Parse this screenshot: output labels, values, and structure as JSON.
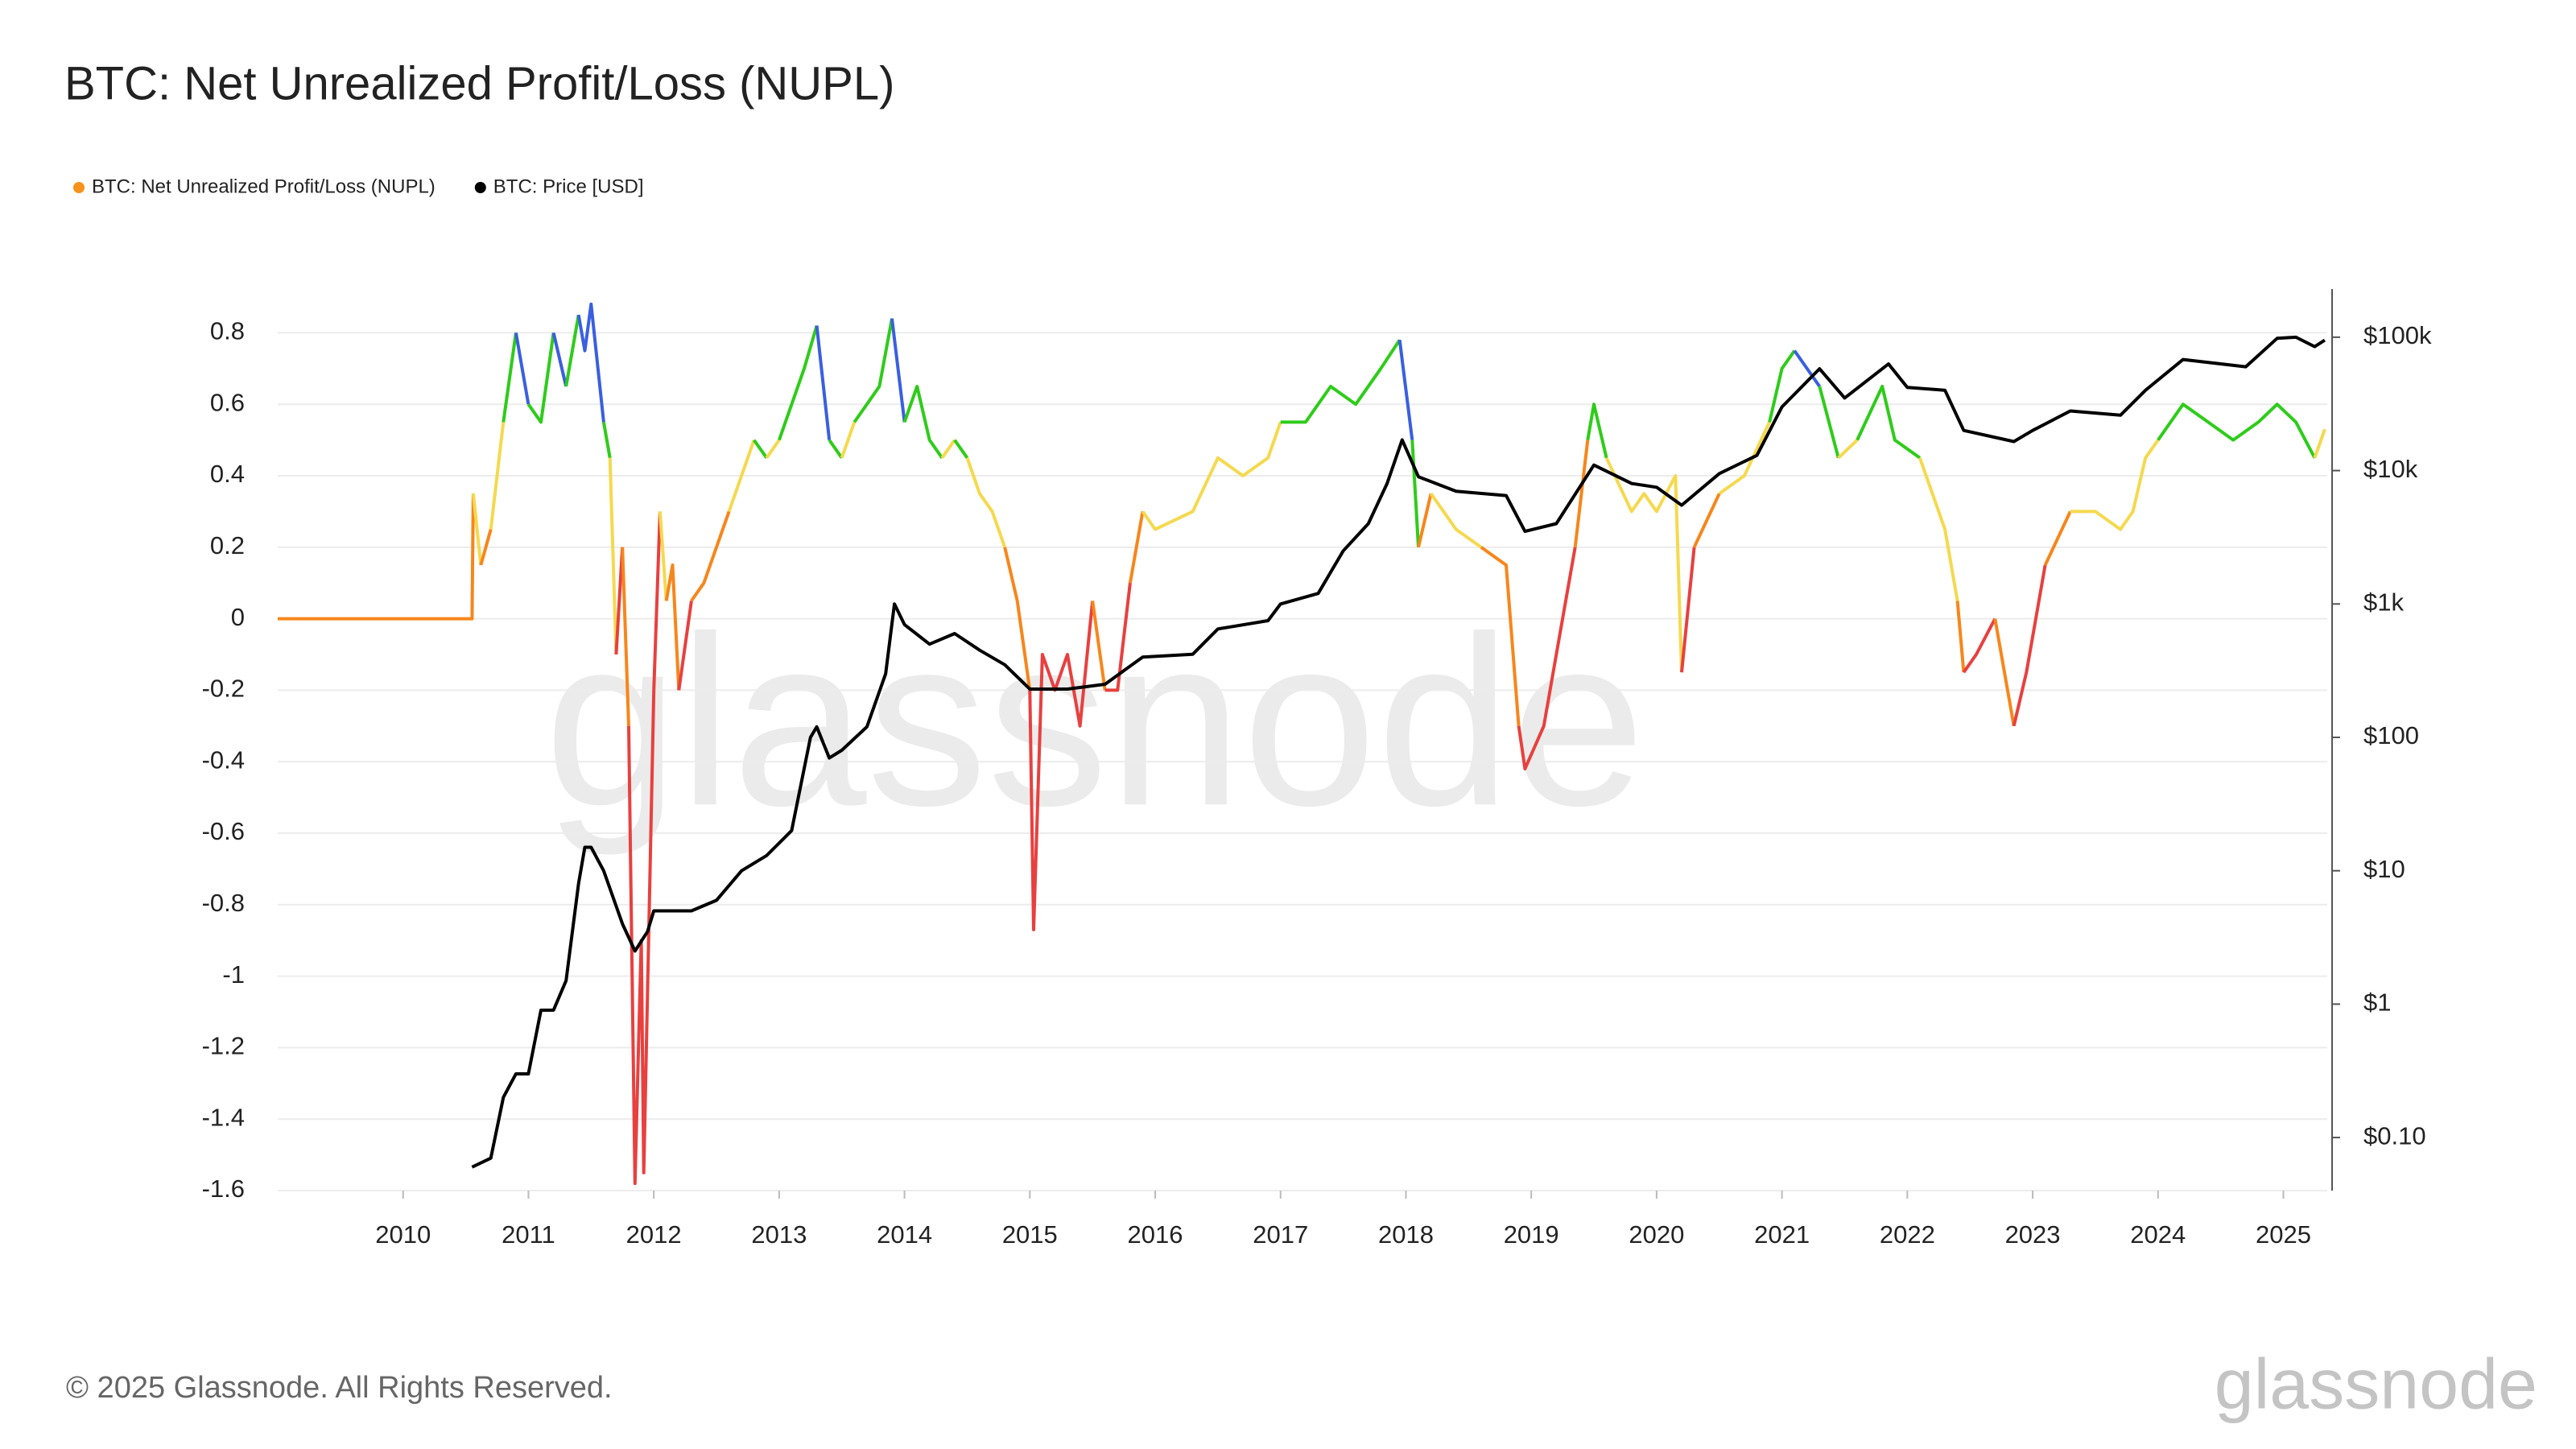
{
  "chart_data": {
    "type": "line",
    "title": "BTC: Net Unrealized Profit/Loss (NUPL)",
    "watermark": "glassnode",
    "footer": "© 2025 Glassnode. All Rights Reserved.",
    "logo": "glassnode",
    "xlim": [
      2009,
      2025.35
    ],
    "xticks": [
      2010,
      2011,
      2012,
      2013,
      2014,
      2015,
      2016,
      2017,
      2018,
      2019,
      2020,
      2021,
      2022,
      2023,
      2024,
      2025
    ],
    "ylim": [
      -1.6,
      0.9
    ],
    "yticks": [
      0.8,
      0.6,
      0.4,
      0.2,
      0,
      -0.2,
      -0.4,
      -0.6,
      -0.8,
      -1,
      -1.2,
      -1.4,
      -1.6
    ],
    "y2lim": [
      0.04,
      200000
    ],
    "y2log": true,
    "y2ticks": [
      {
        "value": 100000,
        "label": "$100k"
      },
      {
        "value": 10000,
        "label": "$10k"
      },
      {
        "value": 1000,
        "label": "$1k"
      },
      {
        "value": 100,
        "label": "$100"
      },
      {
        "value": 10,
        "label": "$10"
      },
      {
        "value": 1,
        "label": "$1"
      },
      {
        "value": 0.1,
        "label": "$0.10"
      }
    ],
    "grid": true,
    "series": [
      {
        "name": "BTC: Net Unrealized Profit/Loss (NUPL)",
        "color": "#f7931a",
        "zones": [
          {
            "max": 0,
            "color": "#e8403f"
          },
          {
            "max": 0.25,
            "color": "#f7861b"
          },
          {
            "max": 0.5,
            "color": "#f5d94e"
          },
          {
            "max": 0.75,
            "color": "#2ecc1a"
          },
          {
            "color": "#3a5fe0"
          }
        ],
        "x": [
          2009.0,
          2010.55,
          2010.56,
          2010.62,
          2010.7,
          2010.8,
          2010.9,
          2011.0,
          2011.1,
          2011.2,
          2011.3,
          2011.4,
          2011.45,
          2011.5,
          2011.6,
          2011.65,
          2011.7,
          2011.75,
          2011.8,
          2011.85,
          2011.9,
          2011.92,
          2012.0,
          2012.05,
          2012.1,
          2012.15,
          2012.2,
          2012.3,
          2012.4,
          2012.5,
          2012.6,
          2012.8,
          2012.9,
          2013.0,
          2013.2,
          2013.3,
          2013.4,
          2013.5,
          2013.6,
          2013.7,
          2013.8,
          2013.9,
          2014.0,
          2014.1,
          2014.2,
          2014.3,
          2014.4,
          2014.5,
          2014.6,
          2014.7,
          2014.8,
          2014.9,
          2015.0,
          2015.03,
          2015.1,
          2015.2,
          2015.3,
          2015.4,
          2015.5,
          2015.6,
          2015.7,
          2015.8,
          2015.9,
          2016.0,
          2016.3,
          2016.5,
          2016.7,
          2016.9,
          2017.0,
          2017.2,
          2017.4,
          2017.6,
          2017.8,
          2017.95,
          2018.05,
          2018.1,
          2018.2,
          2018.4,
          2018.6,
          2018.8,
          2018.9,
          2018.95,
          2019.1,
          2019.2,
          2019.35,
          2019.45,
          2019.5,
          2019.6,
          2019.8,
          2019.9,
          2020.0,
          2020.15,
          2020.2,
          2020.3,
          2020.5,
          2020.7,
          2020.9,
          2021.0,
          2021.1,
          2021.3,
          2021.45,
          2021.6,
          2021.8,
          2021.9,
          2022.1,
          2022.3,
          2022.4,
          2022.45,
          2022.55,
          2022.7,
          2022.85,
          2022.95,
          2023.1,
          2023.3,
          2023.5,
          2023.7,
          2023.8,
          2023.9,
          2024.0,
          2024.2,
          2024.4,
          2024.6,
          2024.8,
          2024.95,
          2025.1,
          2025.25,
          2025.33
        ],
        "values": [
          0,
          0,
          0.35,
          0.15,
          0.25,
          0.55,
          0.8,
          0.6,
          0.55,
          0.8,
          0.65,
          0.85,
          0.75,
          0.88,
          0.55,
          0.45,
          -0.1,
          0.2,
          -0.3,
          -1.58,
          -0.9,
          -1.55,
          -0.2,
          0.3,
          0.05,
          0.15,
          -0.2,
          0.05,
          0.1,
          0.2,
          0.3,
          0.5,
          0.45,
          0.5,
          0.7,
          0.82,
          0.5,
          0.45,
          0.55,
          0.6,
          0.65,
          0.84,
          0.55,
          0.65,
          0.5,
          0.45,
          0.5,
          0.45,
          0.35,
          0.3,
          0.2,
          0.05,
          -0.2,
          -0.87,
          -0.1,
          -0.2,
          -0.1,
          -0.3,
          0.05,
          -0.2,
          -0.2,
          0.1,
          0.3,
          0.25,
          0.3,
          0.45,
          0.4,
          0.45,
          0.55,
          0.55,
          0.65,
          0.6,
          0.7,
          0.78,
          0.5,
          0.2,
          0.35,
          0.25,
          0.2,
          0.15,
          -0.3,
          -0.42,
          -0.3,
          -0.1,
          0.2,
          0.5,
          0.6,
          0.45,
          0.3,
          0.35,
          0.3,
          0.4,
          -0.15,
          0.2,
          0.35,
          0.4,
          0.55,
          0.7,
          0.75,
          0.65,
          0.45,
          0.5,
          0.65,
          0.5,
          0.45,
          0.25,
          0.05,
          -0.15,
          -0.1,
          0.0,
          -0.3,
          -0.15,
          0.15,
          0.3,
          0.3,
          0.25,
          0.3,
          0.45,
          0.5,
          0.6,
          0.55,
          0.5,
          0.55,
          0.6,
          0.55,
          0.45,
          0.53
        ]
      },
      {
        "name": "BTC: Price [USD]",
        "color": "#000000",
        "axis": "y2",
        "x": [
          2010.55,
          2010.7,
          2010.8,
          2010.9,
          2011.0,
          2011.1,
          2011.2,
          2011.3,
          2011.4,
          2011.45,
          2011.5,
          2011.6,
          2011.75,
          2011.85,
          2011.95,
          2012.0,
          2012.3,
          2012.5,
          2012.7,
          2012.9,
          2013.1,
          2013.25,
          2013.3,
          2013.4,
          2013.5,
          2013.7,
          2013.85,
          2013.92,
          2014.0,
          2014.2,
          2014.4,
          2014.6,
          2014.8,
          2015.0,
          2015.3,
          2015.6,
          2015.9,
          2016.3,
          2016.5,
          2016.9,
          2017.0,
          2017.3,
          2017.5,
          2017.7,
          2017.85,
          2017.97,
          2018.1,
          2018.4,
          2018.8,
          2018.95,
          2019.2,
          2019.5,
          2019.8,
          2020.0,
          2020.2,
          2020.5,
          2020.8,
          2021.0,
          2021.3,
          2021.5,
          2021.85,
          2022.0,
          2022.3,
          2022.45,
          2022.85,
          2023.0,
          2023.3,
          2023.7,
          2023.9,
          2024.2,
          2024.7,
          2024.95,
          2025.1,
          2025.25,
          2025.33
        ],
        "values": [
          0.06,
          0.07,
          0.2,
          0.3,
          0.3,
          0.9,
          0.9,
          1.5,
          8,
          15,
          15,
          10,
          4,
          2.5,
          3.5,
          5,
          5,
          6,
          10,
          13,
          20,
          100,
          120,
          70,
          80,
          120,
          300,
          1000,
          700,
          500,
          600,
          450,
          350,
          230,
          230,
          250,
          400,
          420,
          650,
          750,
          1000,
          1200,
          2500,
          4000,
          8000,
          17000,
          9000,
          7000,
          6500,
          3500,
          4000,
          11000,
          8000,
          7500,
          5500,
          9500,
          13000,
          30000,
          58000,
          35000,
          63000,
          42000,
          40000,
          20000,
          16500,
          20000,
          28000,
          26000,
          40000,
          68000,
          60000,
          98000,
          100000,
          85000,
          95000
        ]
      }
    ]
  }
}
